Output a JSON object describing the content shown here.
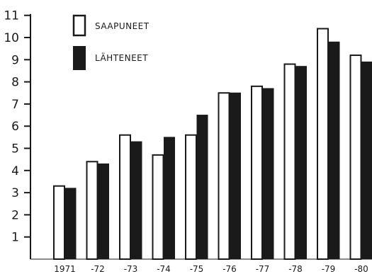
{
  "chart_data": {
    "type": "bar",
    "title": "",
    "xlabel": "",
    "ylabel": "",
    "categories": [
      "1971",
      "-72",
      "-73",
      "-74",
      "-75",
      "-76",
      "-77",
      "-78",
      "-79",
      "-80"
    ],
    "series": [
      {
        "name": "SAAPUNEET",
        "values": [
          3.3,
          4.4,
          5.6,
          4.7,
          5.6,
          7.5,
          7.8,
          8.8,
          10.4,
          9.2
        ],
        "fill": "#ffffff",
        "stroke": "#1a1a1a"
      },
      {
        "name": "LÄHTENEET",
        "values": [
          3.2,
          4.3,
          5.3,
          5.5,
          6.5,
          7.5,
          7.7,
          8.7,
          9.8,
          8.9
        ],
        "fill": "#1a1a1a",
        "stroke": "#1a1a1a"
      }
    ],
    "ylim": [
      0,
      11
    ],
    "yticks": [
      1,
      2,
      3,
      4,
      5,
      6,
      7,
      8,
      9,
      10,
      11
    ],
    "legend_position": "top-left",
    "grid": false
  }
}
